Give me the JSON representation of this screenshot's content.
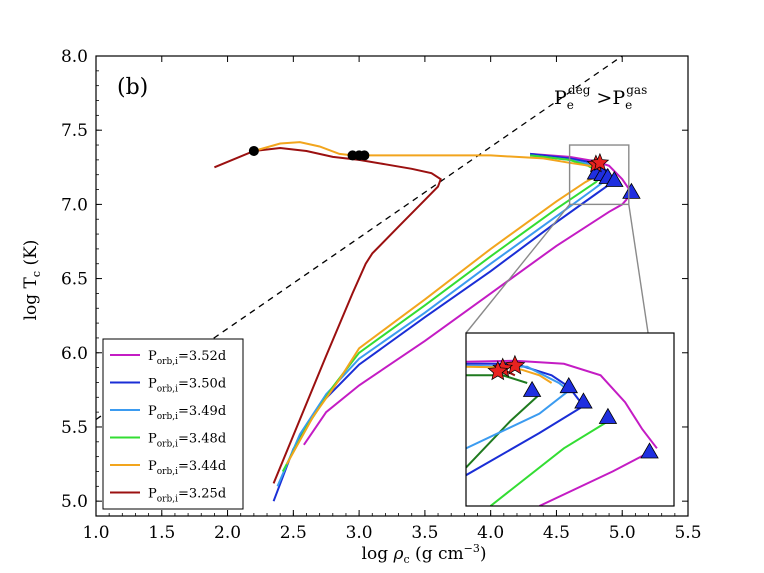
{
  "chart_data": {
    "type": "line",
    "panel_label": "(b)",
    "region_label": {
      "main": "P",
      "sub": "e",
      "sup": "deg",
      "op": " >",
      "main2": "P",
      "sub2": "e",
      "sup2": "gas"
    },
    "xlabel": {
      "pre": "log ",
      "sym": "ρ",
      "sub": "c",
      "post": " (g cm",
      "sup": "−3",
      "close": ")"
    },
    "ylabel": {
      "pre": "log T",
      "sub": "c",
      "post": " (K)"
    },
    "xlim": [
      1.0,
      5.5
    ],
    "ylim": [
      4.9,
      8.0
    ],
    "xticks": [
      "1.0",
      "1.5",
      "2.0",
      "2.5",
      "3.0",
      "3.5",
      "4.0",
      "4.5",
      "5.0",
      "5.5"
    ],
    "yticks": [
      "5.0",
      "5.5",
      "6.0",
      "6.5",
      "7.0",
      "7.5",
      "8.0"
    ],
    "degeneracy_line": {
      "x": [
        1.0,
        5.0
      ],
      "y": [
        5.55,
        8.0
      ]
    },
    "zoom_box": {
      "x": [
        4.6,
        5.05
      ],
      "y": [
        7.0,
        7.4
      ]
    },
    "series": [
      {
        "name": "P",
        "sub": "orb,i",
        "suffix": "=3.52d",
        "color": "#c41cc4",
        "x": [
          2.58,
          2.75,
          3.0,
          3.5,
          4.0,
          4.5,
          4.9,
          5.0,
          5.03,
          5.05,
          5.07
        ],
        "y": [
          5.38,
          5.6,
          5.78,
          6.08,
          6.4,
          6.72,
          6.95,
          7.0,
          7.03,
          7.06,
          7.08
        ]
      },
      {
        "name": "P",
        "sub": "orb,i",
        "suffix": "=3.50d",
        "color": "#1a2ed6",
        "x": [
          2.35,
          2.5,
          2.7,
          3.0,
          3.5,
          4.0,
          4.5,
          4.8,
          4.88,
          4.94
        ],
        "y": [
          5.0,
          5.35,
          5.65,
          5.92,
          6.24,
          6.55,
          6.88,
          7.07,
          7.12,
          7.16
        ]
      },
      {
        "name": "P",
        "sub": "orb,i",
        "suffix": "=3.49d",
        "color": "#3b9bf0",
        "x": [
          2.38,
          2.55,
          2.75,
          3.0,
          3.5,
          4.0,
          4.5,
          4.78,
          4.84,
          4.89
        ],
        "y": [
          5.1,
          5.45,
          5.72,
          5.96,
          6.27,
          6.6,
          6.92,
          7.1,
          7.14,
          7.18
        ]
      },
      {
        "name": "P",
        "sub": "orb,i",
        "suffix": "=3.48d",
        "color": "#33dd33",
        "x": [
          2.42,
          2.6,
          2.8,
          3.0,
          3.5,
          4.0,
          4.5,
          4.75,
          4.8,
          4.85
        ],
        "y": [
          5.2,
          5.5,
          5.77,
          6.0,
          6.32,
          6.65,
          6.97,
          7.12,
          7.15,
          7.2
        ]
      },
      {
        "name": "P",
        "sub": "orb,i",
        "suffix": "=3.44d",
        "color": "#f2a51d",
        "x": [
          2.45,
          2.65,
          2.85,
          3.0,
          3.5,
          4.0,
          4.5,
          4.72,
          4.78,
          4.82
        ],
        "y": [
          5.25,
          5.57,
          5.82,
          6.03,
          6.36,
          6.7,
          7.02,
          7.15,
          7.18,
          7.22
        ]
      },
      {
        "name": "P",
        "sub": "orb,i",
        "suffix": "=3.25d",
        "color": "#9b1010",
        "x": [
          2.35,
          2.55,
          2.75,
          2.95,
          3.05,
          3.1,
          3.3,
          3.5,
          3.6,
          3.62,
          3.55,
          3.4,
          3.2,
          3.0,
          2.8,
          2.6,
          2.4,
          2.2,
          1.9
        ],
        "y": [
          5.12,
          5.55,
          5.98,
          6.4,
          6.6,
          6.67,
          6.85,
          7.03,
          7.12,
          7.17,
          7.21,
          7.24,
          7.27,
          7.3,
          7.32,
          7.36,
          7.38,
          7.36,
          7.25
        ]
      }
    ],
    "common_track": {
      "color": "#f2a51d",
      "x": [
        2.2,
        2.4,
        2.55,
        2.7,
        2.85,
        2.95,
        3.05,
        3.5,
        4.0,
        4.4,
        4.6,
        4.75,
        4.82
      ],
      "y": [
        7.36,
        7.41,
        7.42,
        7.39,
        7.34,
        7.33,
        7.33,
        7.33,
        7.33,
        7.31,
        7.28,
        7.26,
        7.25
      ]
    },
    "colored_track_ends": [
      {
        "color": "#c41cc4",
        "x": [
          4.3,
          4.6,
          4.8,
          4.9,
          5.0,
          5.07
        ],
        "y": [
          7.34,
          7.32,
          7.29,
          7.26,
          7.17,
          7.08
        ]
      },
      {
        "color": "#1a2ed6",
        "x": [
          4.3,
          4.6,
          4.78,
          4.88,
          4.94
        ],
        "y": [
          7.34,
          7.31,
          7.28,
          7.23,
          7.16
        ]
      },
      {
        "color": "#3b9bf0",
        "x": [
          4.3,
          4.6,
          4.76,
          4.84,
          4.89
        ],
        "y": [
          7.33,
          7.3,
          7.27,
          7.23,
          7.18
        ]
      },
      {
        "color": "#33dd33",
        "x": [
          4.3,
          4.6,
          4.74,
          4.8,
          4.85
        ],
        "y": [
          7.33,
          7.3,
          7.26,
          7.23,
          7.2
        ]
      }
    ],
    "black_dots": [
      {
        "x": 2.2,
        "y": 7.36
      },
      {
        "x": 2.95,
        "y": 7.33
      },
      {
        "x": 3.0,
        "y": 7.33
      },
      {
        "x": 3.04,
        "y": 7.33
      }
    ],
    "stars": [
      {
        "x": 4.8,
        "y": 7.27
      },
      {
        "x": 4.83,
        "y": 7.28
      }
    ],
    "triangles": [
      {
        "x": 4.8,
        "y": 7.21
      },
      {
        "x": 4.85,
        "y": 7.2
      },
      {
        "x": 4.89,
        "y": 7.18
      },
      {
        "x": 4.94,
        "y": 7.16
      },
      {
        "x": 5.07,
        "y": 7.08
      }
    ],
    "inset": {
      "xlim": [
        4.3,
        5.15
      ],
      "ylim": [
        6.9,
        7.35
      ],
      "lines": [
        {
          "color": "#9b1010",
          "x": [
            4.3,
            4.38,
            4.45,
            4.5
          ],
          "y": [
            7.265,
            7.262,
            7.255,
            7.24
          ]
        },
        {
          "color": "#1f7a1f",
          "x": [
            4.3,
            4.45,
            4.55
          ],
          "y": [
            7.24,
            7.24,
            7.22
          ]
        },
        {
          "color": "#1f7a1f",
          "x": [
            4.3,
            4.48,
            4.6
          ],
          "y": [
            7.0,
            7.12,
            7.19
          ]
        },
        {
          "color": "#3b9bf0",
          "x": [
            4.3,
            4.6,
            4.72
          ],
          "y": [
            7.05,
            7.14,
            7.2
          ]
        },
        {
          "color": "#1a2ed6",
          "x": [
            4.3,
            4.6,
            4.78
          ],
          "y": [
            6.98,
            7.09,
            7.16
          ]
        },
        {
          "color": "#33dd33",
          "x": [
            4.4,
            4.7,
            4.88
          ],
          "y": [
            6.9,
            7.05,
            7.12
          ]
        },
        {
          "color": "#c41cc4",
          "x": [
            4.6,
            4.9,
            5.05
          ],
          "y": [
            6.9,
            6.99,
            7.04
          ]
        },
        {
          "color": "#c41cc4",
          "x": [
            4.3,
            4.5,
            4.7,
            4.85,
            4.95,
            5.02,
            5.08
          ],
          "y": [
            7.275,
            7.278,
            7.27,
            7.24,
            7.17,
            7.1,
            7.05
          ]
        },
        {
          "color": "#1a2ed6",
          "x": [
            4.3,
            4.5,
            4.65,
            4.72,
            4.78
          ],
          "y": [
            7.27,
            7.27,
            7.24,
            7.21,
            7.16
          ]
        },
        {
          "color": "#3b9bf0",
          "x": [
            4.3,
            4.55,
            4.68,
            4.72
          ],
          "y": [
            7.265,
            7.262,
            7.22,
            7.2
          ]
        },
        {
          "color": "#f2a51d",
          "x": [
            4.3,
            4.5,
            4.6,
            4.65
          ],
          "y": [
            7.262,
            7.26,
            7.24,
            7.22
          ]
        }
      ],
      "stars": [
        {
          "x": 4.5,
          "y": 7.265
        },
        {
          "x": 4.45,
          "y": 7.258
        },
        {
          "x": 4.43,
          "y": 7.25
        }
      ],
      "triangles": [
        {
          "x": 4.57,
          "y": 7.2
        },
        {
          "x": 4.72,
          "y": 7.21
        },
        {
          "x": 4.78,
          "y": 7.17
        },
        {
          "x": 4.88,
          "y": 7.13
        },
        {
          "x": 5.05,
          "y": 7.04
        }
      ]
    }
  }
}
